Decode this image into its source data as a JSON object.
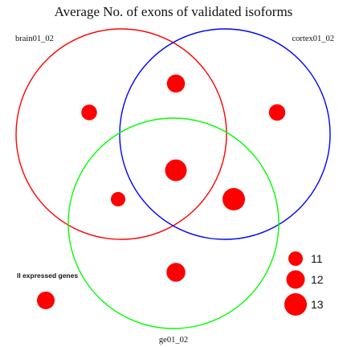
{
  "title": "Average No. of exons of validated isoforms",
  "sets": [
    {
      "name": "brain01_02",
      "color": "#ff0000"
    },
    {
      "name": "cortex01_02",
      "color": "#0000ff"
    },
    {
      "name": "ge01_02",
      "color": "#00ff00"
    }
  ],
  "outside_label": "ll expressed genes",
  "legend": [
    {
      "value": "11"
    },
    {
      "value": "12"
    },
    {
      "value": "13"
    }
  ],
  "chart_data": {
    "type": "venn",
    "title": "Average No. of exons of validated isoforms",
    "sets": [
      "brain01_02",
      "cortex01_02",
      "ge01_02"
    ],
    "dot_color": "#ff0000",
    "regions": [
      {
        "region": "brain01_02 only",
        "value": 11.3
      },
      {
        "region": "cortex01_02 only",
        "value": 11.5
      },
      {
        "region": "ge01_02 only",
        "value": 12.1
      },
      {
        "region": "brain01_02 & cortex01_02",
        "value": 11.9
      },
      {
        "region": "brain01_02 & ge01_02",
        "value": 11.0
      },
      {
        "region": "cortex01_02 & ge01_02",
        "value": 13.0
      },
      {
        "region": "brain01_02 & cortex01_02 & ge01_02",
        "value": 12.8
      },
      {
        "region": "all expressed genes",
        "value": 11.8
      }
    ],
    "legend_values": [
      11,
      12,
      13
    ]
  }
}
